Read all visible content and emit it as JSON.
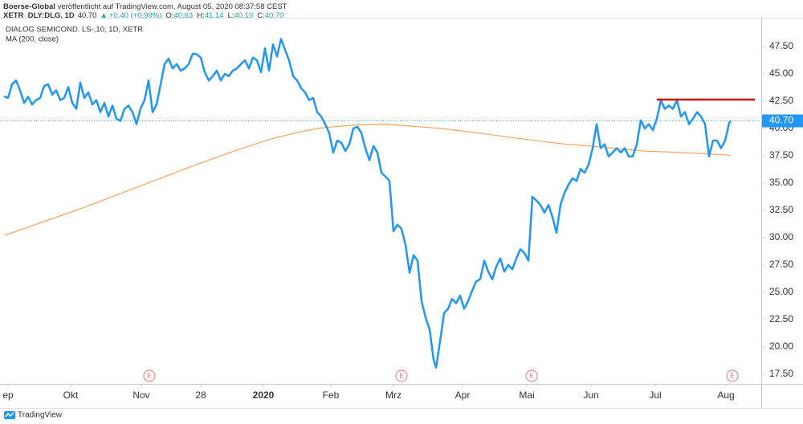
{
  "header": {
    "publisher": "Boerse-Global",
    "published": " veröffentlicht auf TradingView.com, August 05, 2020 08:37:58 CEST",
    "symbol": "XETR_DLY:DLG, 1D",
    "last": "40.70",
    "arrow": "▲",
    "change": "+0.40 (+0.99%)",
    "ohlc": [
      {
        "key": "O:",
        "value": "40.63"
      },
      {
        "key": "H:",
        "value": "41.14"
      },
      {
        "key": "L:",
        "value": "40.19"
      },
      {
        "key": "C:",
        "value": "40.70"
      }
    ]
  },
  "chart_data": {
    "type": "line",
    "xlim": [
      0,
      237
    ],
    "ylim": [
      16.62,
      50.15
    ],
    "xticks": [
      {
        "value": 2.5,
        "label": "ep"
      },
      {
        "value": 22,
        "label": "Okt"
      },
      {
        "value": 44,
        "label": "Nov"
      },
      {
        "value": 62.5,
        "label": "28"
      },
      {
        "value": 82,
        "label": "2020"
      },
      {
        "value": 103,
        "label": "Feb"
      },
      {
        "value": 122.5,
        "label": "Mrz"
      },
      {
        "value": 144,
        "label": "Apr"
      },
      {
        "value": 164,
        "label": "Mai"
      },
      {
        "value": 184,
        "label": "Jun"
      },
      {
        "value": 204,
        "label": "Jul"
      },
      {
        "value": 226,
        "label": "Aug"
      }
    ],
    "yticks": [
      {
        "value": 17.5,
        "label": "17.50"
      },
      {
        "value": 20,
        "label": "20.00"
      },
      {
        "value": 22.5,
        "label": "22.50"
      },
      {
        "value": 25,
        "label": "25.00"
      },
      {
        "value": 27.5,
        "label": "27.50"
      },
      {
        "value": 30,
        "label": "30.00"
      },
      {
        "value": 32.5,
        "label": "32.50"
      },
      {
        "value": 35,
        "label": "35.00"
      },
      {
        "value": 37.5,
        "label": "37.50"
      },
      {
        "value": 40,
        "label": "40.00"
      },
      {
        "value": 42.5,
        "label": "42.50"
      },
      {
        "value": 45,
        "label": "45.00"
      },
      {
        "value": 47.5,
        "label": "47.50"
      }
    ],
    "grid": false,
    "series": [
      {
        "name": "DIALOG SEMICOND. LS-,10, 1D, XETR",
        "color": "#2196f3",
        "width": 2.5,
        "x": [
          1.25,
          2.5,
          3.75,
          5,
          6.25,
          7.5,
          8.75,
          10,
          11.25,
          12.5,
          13.75,
          15,
          16.25,
          17.5,
          18.75,
          20,
          21.25,
          22.5,
          23.75,
          25,
          26.25,
          27.5,
          28.75,
          30,
          31.25,
          32.5,
          33.75,
          35,
          36.25,
          37.5,
          38.75,
          40,
          41.25,
          42.5,
          43.75,
          45,
          46.25,
          47.5,
          48.75,
          50,
          51.25,
          52.5,
          53.75,
          55,
          56.25,
          57.5,
          58.75,
          60,
          61.25,
          62.5,
          63.75,
          65,
          66.25,
          67.5,
          68.75,
          70,
          71.25,
          72.5,
          73.75,
          75,
          76.25,
          77.5,
          78.75,
          80,
          81.25,
          82.5,
          83.75,
          85,
          86.25,
          87.5,
          88.75,
          90,
          91.25,
          92.5,
          93.75,
          95,
          96.25,
          97.5,
          98.75,
          100,
          101.25,
          102.5,
          103.75,
          105,
          106.25,
          107.5,
          108.75,
          110,
          111.25,
          112.5,
          113.75,
          115,
          116.25,
          117.5,
          118.75,
          120,
          121.25,
          122.5,
          123.75,
          125,
          126.25,
          127.5,
          128.75,
          130,
          131.25,
          132.5,
          133.75,
          135,
          135.75,
          137,
          138.25,
          139.5,
          140.75,
          142,
          143.25,
          144.5,
          145.75,
          147,
          148.25,
          149.5,
          150.75,
          152,
          153.25,
          154.5,
          155.75,
          157,
          158.25,
          159.5,
          160.75,
          162,
          163.25,
          164.5,
          165.75,
          167,
          168.25,
          169.5,
          170.75,
          172,
          173.25,
          174.5,
          175.75,
          177,
          178.25,
          179.5,
          180.75,
          182,
          183.25,
          184.5,
          185.75,
          187,
          188.25,
          189.5,
          190.75,
          192,
          193.25,
          194.5,
          195.75,
          197,
          198.25,
          199.5,
          200.75,
          202,
          203.25,
          204.5,
          205.75,
          207,
          208.25,
          209.5,
          210.75,
          212,
          213.25,
          214.5,
          215.75,
          217,
          218.25,
          219.5,
          220.75,
          222,
          223.25,
          224.5,
          225.75,
          227,
          227.5
        ],
        "values": [
          42.94,
          42.8,
          44.05,
          44.4,
          43.5,
          42.35,
          42.9,
          42.2,
          42.6,
          42.8,
          43.9,
          44.05,
          43.1,
          43.5,
          42.6,
          42.8,
          43.8,
          42.35,
          41.8,
          44.2,
          42.8,
          43.3,
          42.2,
          42.6,
          41.5,
          42.35,
          41.1,
          42.1,
          40.9,
          40.7,
          41.8,
          42.1,
          41.5,
          40.4,
          41.8,
          42.6,
          44.4,
          41.5,
          42.2,
          44.05,
          45.9,
          46.4,
          45.5,
          45.9,
          45.3,
          45.5,
          45.9,
          46.85,
          46.8,
          46.5,
          45.15,
          44.4,
          44.8,
          45.3,
          44.4,
          45,
          44.8,
          45.3,
          45.5,
          45.9,
          46.25,
          45.5,
          46.5,
          46.25,
          45.15,
          47.35,
          45.3,
          47.7,
          46.6,
          48.2,
          47.2,
          46.25,
          44.8,
          44.4,
          43.7,
          43.3,
          42.6,
          42.8,
          41.5,
          41.1,
          40.4,
          39.6,
          37.8,
          38.9,
          38.7,
          37.95,
          38.55,
          40,
          40.15,
          39.6,
          38.2,
          37.1,
          38.4,
          37.8,
          35.95,
          35.6,
          35.2,
          30.6,
          31.2,
          30.8,
          29.35,
          26.8,
          28.4,
          27.9,
          24.2,
          22.7,
          21.6,
          18.8,
          18.1,
          20.5,
          23.1,
          23.5,
          24.4,
          24,
          24.7,
          23.5,
          24.2,
          25.15,
          26,
          26.2,
          27.9,
          26.9,
          26.2,
          27.35,
          28.1,
          26.9,
          27.5,
          27.1,
          28.1,
          28.95,
          28.6,
          27.9,
          33.75,
          33.4,
          33,
          32.3,
          33,
          31.9,
          30.45,
          33,
          34.1,
          34.85,
          35.45,
          35.2,
          36.3,
          35.95,
          36.7,
          38.2,
          40.4,
          38.2,
          38.55,
          37.45,
          37.8,
          38.2,
          37.8,
          38.2,
          37.45,
          37.45,
          38.55,
          40.75,
          40,
          40.4,
          39.85,
          40.9,
          42.6,
          41.8,
          42.1,
          41.8,
          42.6,
          41.1,
          41.5,
          40.4,
          40.9,
          41.5,
          41.1,
          40.4,
          37.45,
          38.9,
          38.9,
          38.2,
          38.9,
          40.5,
          40.7
        ]
      },
      {
        "name": "MA (200, close)",
        "color": "#f7a25c",
        "width": 1.2,
        "x": [
          1.25,
          25,
          37.5,
          50,
          62.5,
          75,
          85,
          95,
          100,
          105,
          112.5,
          120,
          137.5,
          150,
          162.5,
          175,
          187.5,
          200,
          212.5,
          227.5
        ],
        "values": [
          30.2,
          32.65,
          34.05,
          35.45,
          36.85,
          38.15,
          39.1,
          39.8,
          40.05,
          40.2,
          40.35,
          40.4,
          40,
          39.55,
          39.05,
          38.6,
          38.3,
          37.95,
          37.8,
          37.55
        ]
      }
    ],
    "hlines": [
      {
        "value": 42.65,
        "x": [
          204.5,
          235
        ],
        "color": "#cc0000"
      }
    ],
    "last_price": {
      "value": 40.7,
      "label": "40.70",
      "color": "#2196f3"
    },
    "events": [
      {
        "x": 46.5,
        "label": "E"
      },
      {
        "x": 125,
        "label": "E"
      },
      {
        "x": 165.5,
        "label": "E"
      },
      {
        "x": 228,
        "label": "E"
      }
    ]
  },
  "footer": "TradingView"
}
